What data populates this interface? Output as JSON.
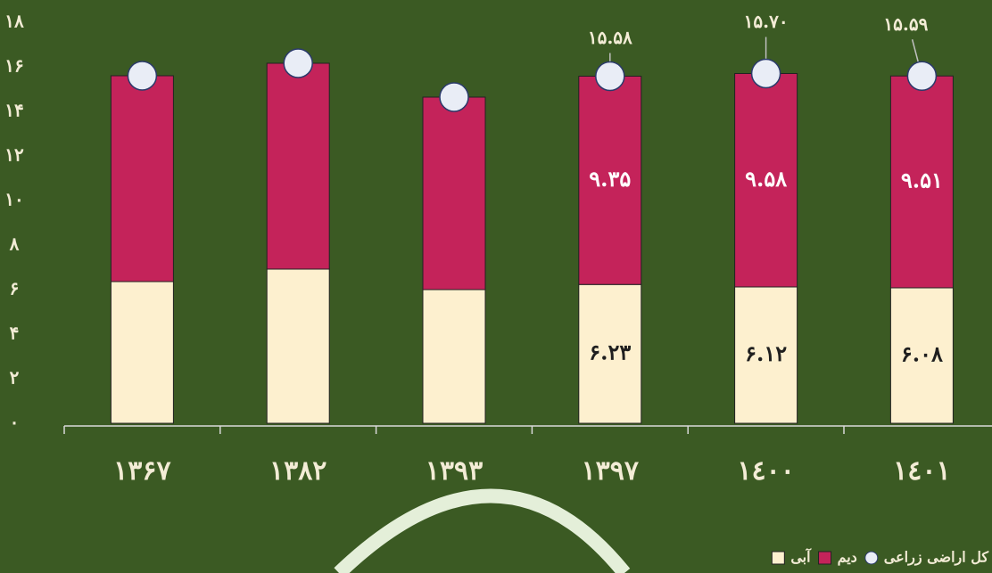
{
  "chart_data": {
    "type": "stacked_bar",
    "categories": [
      "۱۳۶۷",
      "۱۳۸۲",
      "۱۳۹۳",
      "۱۳۹۷",
      "١٤٠٠",
      "١٤٠١"
    ],
    "series": [
      {
        "name": "آبی",
        "color": "#fdf0cf",
        "values": [
          6.36,
          6.92,
          6.0,
          6.23,
          6.12,
          6.08
        ],
        "value_labels": [
          null,
          null,
          null,
          "۶.۲۳",
          "۶.۱۲",
          "۶.۰۸"
        ]
      },
      {
        "name": "دیم",
        "color": "#c4235a",
        "values": [
          9.24,
          9.24,
          8.64,
          9.35,
          9.58,
          9.51
        ],
        "value_labels": [
          null,
          null,
          null,
          "۹.۳۵",
          "۹.۵۸",
          "۹.۵۱"
        ]
      },
      {
        "name": "کل اراضی زراعی",
        "color": "#e9edf6",
        "type": "marker",
        "values": [
          15.6,
          16.16,
          14.64,
          15.58,
          15.7,
          15.59
        ],
        "value_labels": [
          null,
          null,
          null,
          "۱۵.۵۸",
          "۱۵.۷۰",
          "۱۵.۵۹"
        ]
      }
    ],
    "ylim": [
      0,
      18
    ],
    "yticks": [
      {
        "value": 0,
        "label": "۰"
      },
      {
        "value": 2,
        "label": "۲"
      },
      {
        "value": 4,
        "label": "۴"
      },
      {
        "value": 6,
        "label": "۶"
      },
      {
        "value": 8,
        "label": "۸"
      },
      {
        "value": 10,
        "label": "۱۰"
      },
      {
        "value": 12,
        "label": "۱۲"
      },
      {
        "value": 14,
        "label": "۱۴"
      },
      {
        "value": 16,
        "label": "۱۶"
      },
      {
        "value": 18,
        "label": "۱۸"
      }
    ]
  }
}
